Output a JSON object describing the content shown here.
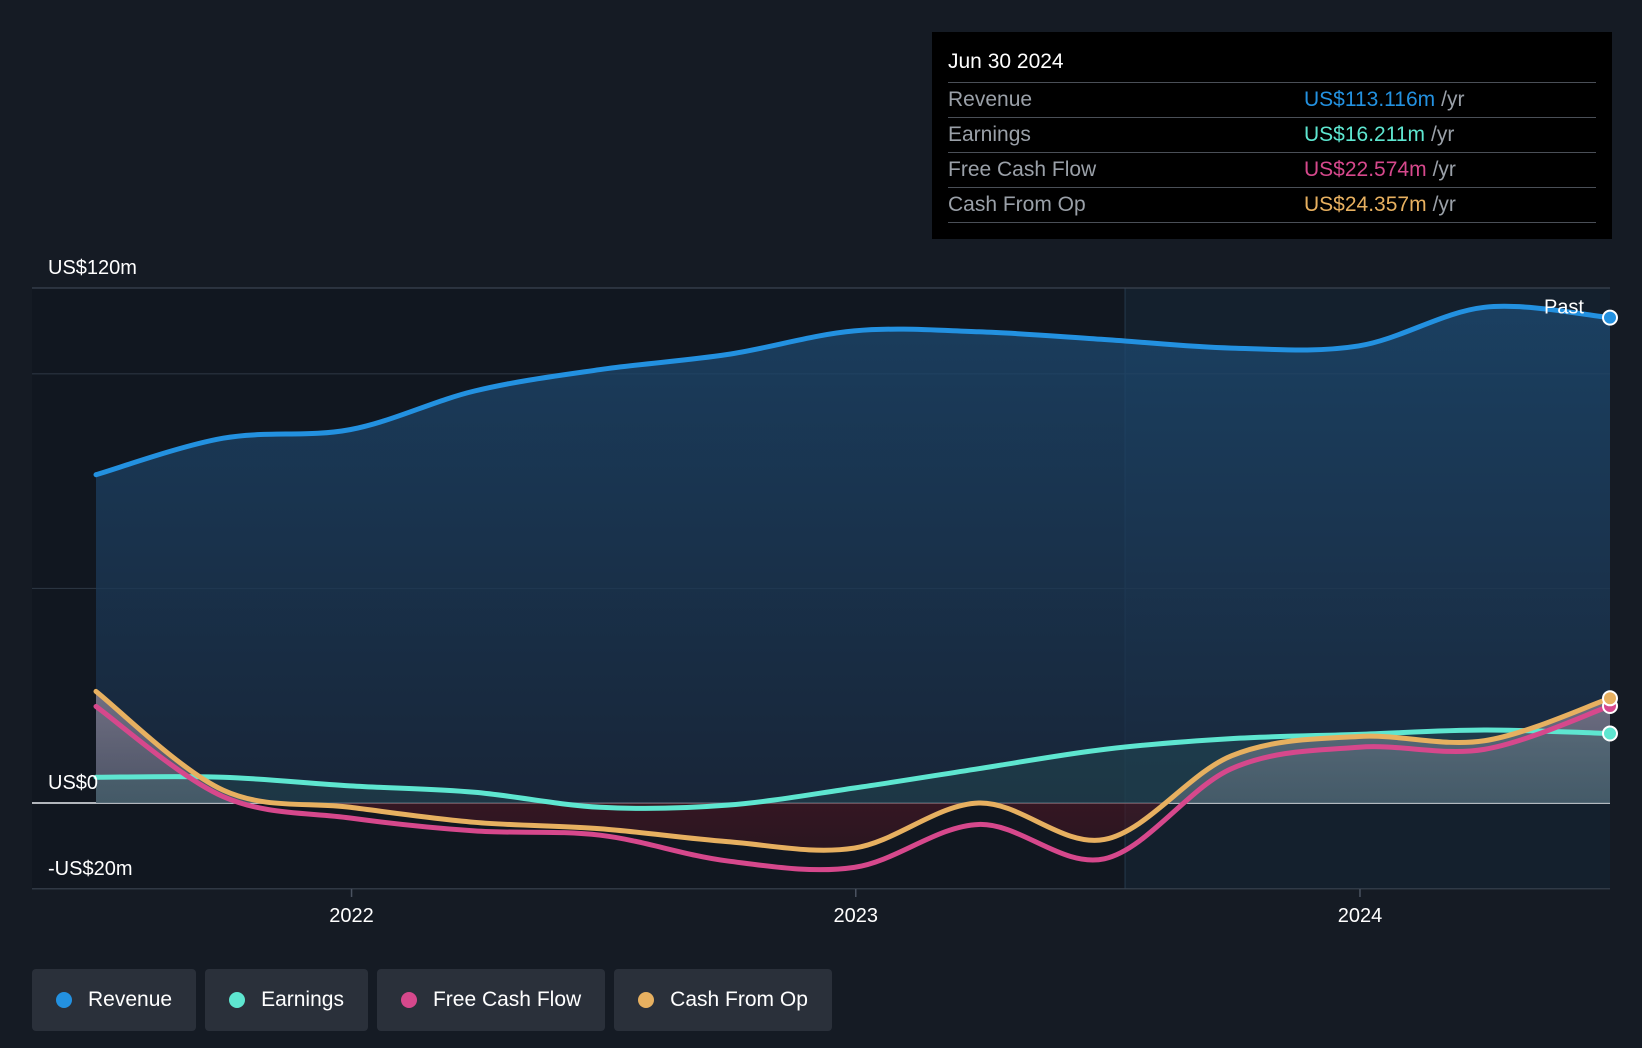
{
  "chart_data": {
    "type": "area",
    "x_domain": [
      "2021-06-30",
      "2024-06-30"
    ],
    "y_axis": {
      "min": -20,
      "max": 120,
      "labels": [
        {
          "value": 120,
          "text": "US$120m"
        },
        {
          "value": 0,
          "text": "US$0"
        },
        {
          "value": -20,
          "text": "-US$20m"
        }
      ]
    },
    "x_ticks": [
      {
        "date": "2022-01-01",
        "label": "2022"
      },
      {
        "date": "2023-01-01",
        "label": "2023"
      },
      {
        "date": "2024-01-01",
        "label": "2024"
      }
    ],
    "past_divider_date": "2023-07-15",
    "past_label": "Past",
    "series": [
      {
        "name": "Revenue",
        "color": "#2391e0",
        "points": [
          [
            "2021-06-30",
            76.5
          ],
          [
            "2021-09-30",
            85.0
          ],
          [
            "2021-12-31",
            87.0
          ],
          [
            "2022-03-31",
            96.0
          ],
          [
            "2022-06-30",
            101.0
          ],
          [
            "2022-09-30",
            104.5
          ],
          [
            "2022-12-31",
            110.0
          ],
          [
            "2023-03-31",
            109.8
          ],
          [
            "2023-06-30",
            108.0
          ],
          [
            "2023-09-30",
            106.0
          ],
          [
            "2023-12-31",
            106.5
          ],
          [
            "2024-03-31",
            115.5
          ],
          [
            "2024-06-30",
            113.1
          ]
        ]
      },
      {
        "name": "Earnings",
        "color": "#5ee6d0",
        "points": [
          [
            "2021-06-30",
            6.0
          ],
          [
            "2021-09-30",
            6.0
          ],
          [
            "2021-12-31",
            4.0
          ],
          [
            "2022-03-31",
            2.5
          ],
          [
            "2022-06-30",
            -1.0
          ],
          [
            "2022-09-30",
            -0.5
          ],
          [
            "2022-12-31",
            3.5
          ],
          [
            "2023-03-31",
            8.0
          ],
          [
            "2023-06-30",
            12.5
          ],
          [
            "2023-09-30",
            15.0
          ],
          [
            "2023-12-31",
            16.0
          ],
          [
            "2024-03-31",
            17.0
          ],
          [
            "2024-06-30",
            16.2
          ]
        ]
      },
      {
        "name": "Free Cash Flow",
        "color": "#d6488c",
        "points": [
          [
            "2021-06-30",
            22.5
          ],
          [
            "2021-09-30",
            1.5
          ],
          [
            "2021-12-31",
            -3.5
          ],
          [
            "2022-03-31",
            -6.5
          ],
          [
            "2022-06-30",
            -7.5
          ],
          [
            "2022-09-30",
            -13.5
          ],
          [
            "2022-12-31",
            -15.0
          ],
          [
            "2023-03-31",
            -5.0
          ],
          [
            "2023-06-30",
            -13.0
          ],
          [
            "2023-09-30",
            8.0
          ],
          [
            "2023-12-31",
            13.0
          ],
          [
            "2024-03-31",
            12.5
          ],
          [
            "2024-06-30",
            22.6
          ]
        ]
      },
      {
        "name": "Cash From Op",
        "color": "#e7b060",
        "points": [
          [
            "2021-06-30",
            26.0
          ],
          [
            "2021-09-30",
            3.0
          ],
          [
            "2021-12-31",
            -1.0
          ],
          [
            "2022-03-31",
            -4.5
          ],
          [
            "2022-06-30",
            -6.0
          ],
          [
            "2022-09-30",
            -9.0
          ],
          [
            "2022-12-31",
            -10.5
          ],
          [
            "2023-03-31",
            0.0
          ],
          [
            "2023-06-30",
            -8.5
          ],
          [
            "2023-09-30",
            11.0
          ],
          [
            "2023-12-31",
            15.5
          ],
          [
            "2024-03-31",
            14.5
          ],
          [
            "2024-06-30",
            24.4
          ]
        ]
      }
    ]
  },
  "tooltip": {
    "date": "Jun 30 2024",
    "rows": [
      {
        "name": "Revenue",
        "value": "US$113.116m",
        "unit": "/yr",
        "color": "#2391e0"
      },
      {
        "name": "Earnings",
        "value": "US$16.211m",
        "unit": "/yr",
        "color": "#5ee6d0"
      },
      {
        "name": "Free Cash Flow",
        "value": "US$22.574m",
        "unit": "/yr",
        "color": "#d6488c"
      },
      {
        "name": "Cash From Op",
        "value": "US$24.357m",
        "unit": "/yr",
        "color": "#e7b060"
      }
    ]
  },
  "legend": [
    {
      "label": "Revenue",
      "color": "#2391e0"
    },
    {
      "label": "Earnings",
      "color": "#5ee6d0"
    },
    {
      "label": "Free Cash Flow",
      "color": "#d6488c"
    },
    {
      "label": "Cash From Op",
      "color": "#e7b060"
    }
  ]
}
